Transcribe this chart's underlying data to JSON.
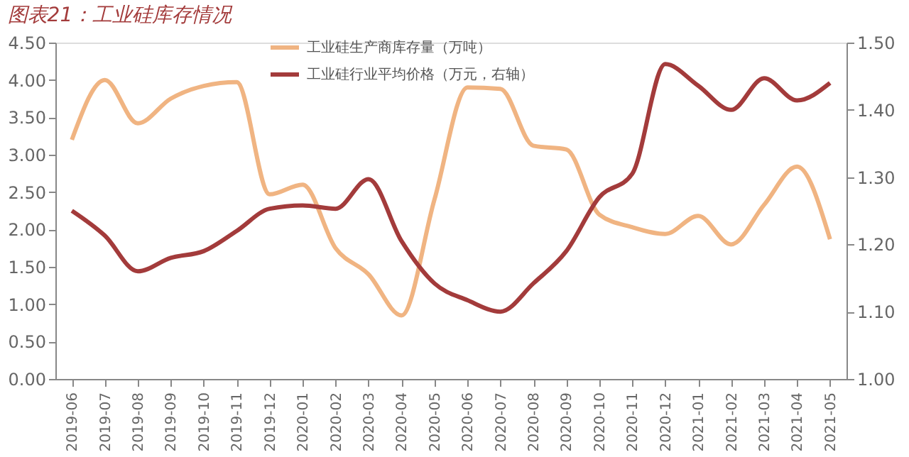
{
  "chart_data": {
    "type": "line",
    "title": "图表21：工业硅库存情况",
    "categories": [
      "2019-06",
      "2019-07",
      "2019-08",
      "2019-09",
      "2019-10",
      "2019-11",
      "2019-12",
      "2020-01",
      "2020-02",
      "2020-03",
      "2020-04",
      "2020-05",
      "2020-06",
      "2020-07",
      "2020-08",
      "2020-09",
      "2020-10",
      "2020-11",
      "2020-12",
      "2021-01",
      "2021-02",
      "2021-03",
      "2021-04",
      "2021-05"
    ],
    "series": [
      {
        "name": "工业硅生产商库存量（万吨）",
        "color": "#f0b482",
        "values": [
          3.2,
          4.0,
          3.42,
          3.75,
          3.92,
          3.97,
          2.47,
          2.6,
          1.75,
          1.4,
          0.85,
          2.4,
          3.9,
          3.88,
          3.12,
          3.07,
          2.2,
          2.03,
          1.94,
          2.18,
          1.8,
          2.33,
          2.84,
          1.87
        ]
      },
      {
        "name": "工业硅行业平均价格（万元，右轴）",
        "color": "#a33b3b",
        "axis": "y2",
        "values": [
          1.25,
          1.213,
          1.16,
          1.18,
          1.19,
          1.22,
          1.253,
          1.258,
          1.253,
          1.297,
          1.205,
          1.142,
          1.117,
          1.1,
          1.142,
          1.19,
          1.27,
          1.305,
          1.468,
          1.436,
          1.4,
          1.447,
          1.414,
          1.44
        ]
      }
    ],
    "ylim": [
      0,
      4.5
    ],
    "yticks": [
      {
        "value": 0,
        "label": "0.00"
      },
      {
        "value": 0.5,
        "label": "0.50"
      },
      {
        "value": 1,
        "label": "1.00"
      },
      {
        "value": 1.5,
        "label": "1.50"
      },
      {
        "value": 2,
        "label": "2.00"
      },
      {
        "value": 2.5,
        "label": "2.50"
      },
      {
        "value": 3,
        "label": "3.00"
      },
      {
        "value": 3.5,
        "label": "3.50"
      },
      {
        "value": 4,
        "label": "4.00"
      },
      {
        "value": 4.5,
        "label": "4.50"
      }
    ],
    "y2lim": [
      1.0,
      1.5
    ],
    "y2ticks": [
      {
        "value": 1.0,
        "label": "1.00"
      },
      {
        "value": 1.1,
        "label": "1.10"
      },
      {
        "value": 1.2,
        "label": "1.20"
      },
      {
        "value": 1.3,
        "label": "1.30"
      },
      {
        "value": 1.4,
        "label": "1.40"
      },
      {
        "value": 1.5,
        "label": "1.50"
      }
    ],
    "grid": false,
    "legend": "top",
    "marker": "none",
    "line_style": "solid"
  }
}
